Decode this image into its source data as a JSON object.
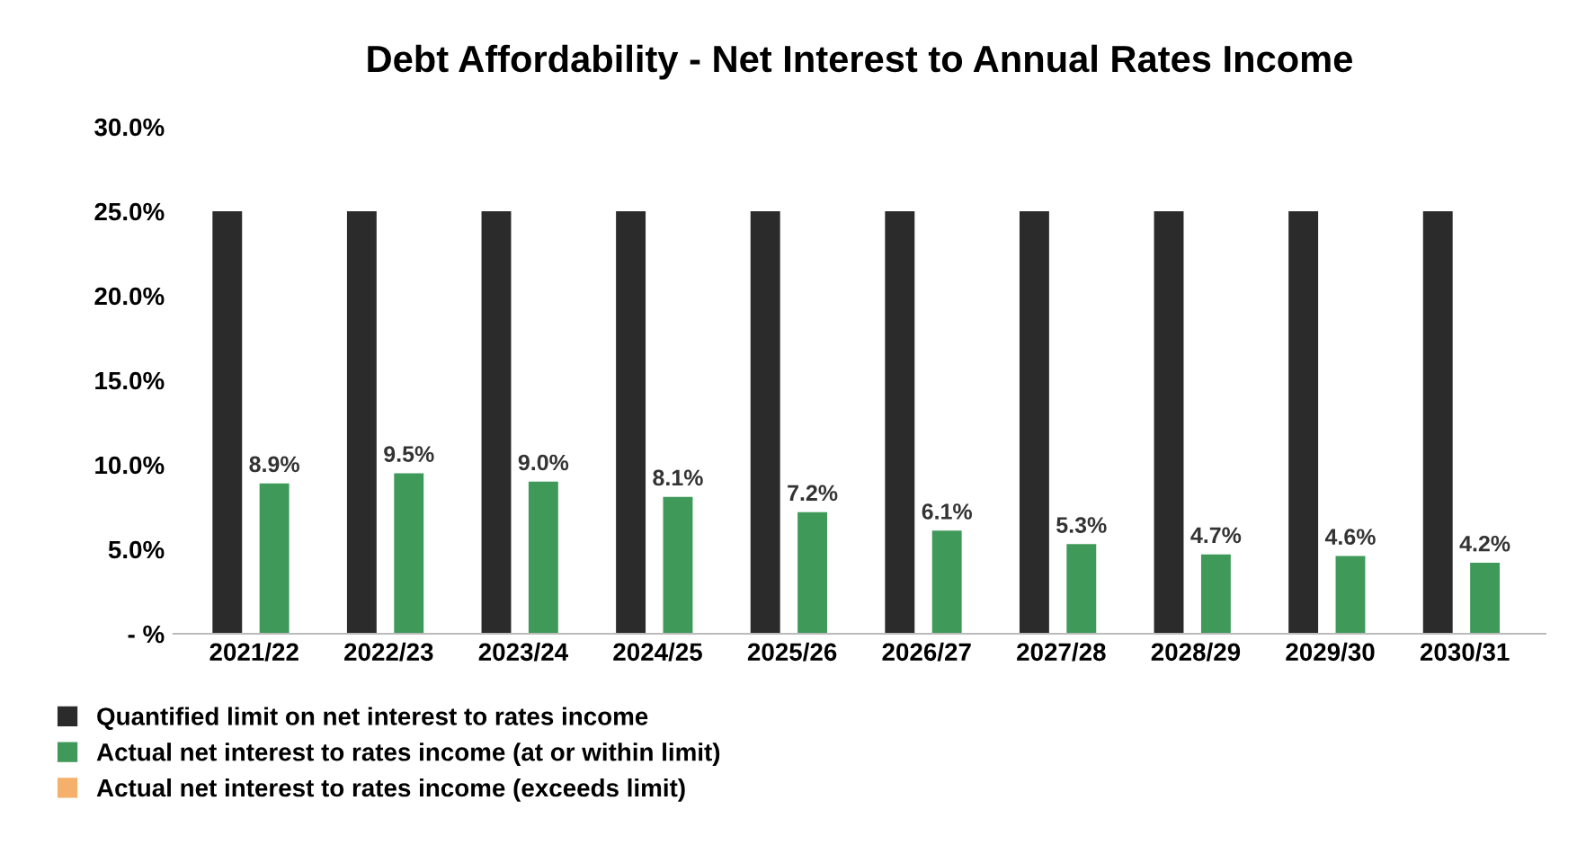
{
  "chart_data": {
    "type": "bar",
    "title": "Debt Affordability - Net Interest to Annual Rates Income",
    "categories": [
      "2021/22",
      "2022/23",
      "2023/24",
      "2024/25",
      "2025/26",
      "2026/27",
      "2027/28",
      "2028/29",
      "2029/30",
      "2030/31"
    ],
    "series": [
      {
        "name": "Quantified limit on net interest to rates income",
        "color": "#2b2b2b",
        "values": [
          25.0,
          25.0,
          25.0,
          25.0,
          25.0,
          25.0,
          25.0,
          25.0,
          25.0,
          25.0
        ]
      },
      {
        "name": "Actual net interest to rates income (at or within limit)",
        "color": "#3f9a5a",
        "values": [
          8.9,
          9.5,
          9.0,
          8.1,
          7.2,
          6.1,
          5.3,
          4.7,
          4.6,
          4.2
        ],
        "value_labels": [
          "8.9%",
          "9.5%",
          "9.0%",
          "8.1%",
          "7.2%",
          "6.1%",
          "5.3%",
          "4.7%",
          "4.6%",
          "4.2%"
        ]
      },
      {
        "name": "Actual net interest to rates income (exceeds limit)",
        "color": "#f5b06b",
        "values": [
          null,
          null,
          null,
          null,
          null,
          null,
          null,
          null,
          null,
          null
        ]
      }
    ],
    "ylim": [
      0,
      30
    ],
    "yticks": [
      {
        "value": 0,
        "label": "- %"
      },
      {
        "value": 5,
        "label": "5.0%"
      },
      {
        "value": 10,
        "label": "10.0%"
      },
      {
        "value": 15,
        "label": "15.0%"
      },
      {
        "value": 20,
        "label": "20.0%"
      },
      {
        "value": 25,
        "label": "25.0%"
      },
      {
        "value": 30,
        "label": "30.0%"
      }
    ],
    "grid": false,
    "legend": "bottom"
  }
}
